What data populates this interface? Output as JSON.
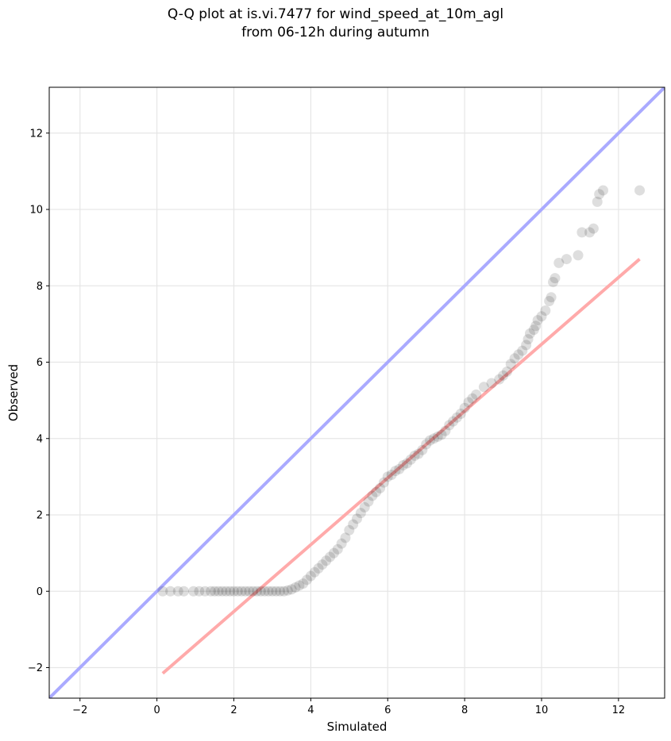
{
  "title": {
    "line1": "Q-Q plot at is.vi.7477 for wind_speed_at_10m_agl",
    "line2": "from 06-12h during autumn"
  },
  "chart_data": {
    "type": "scatter",
    "xlabel": "Simulated",
    "ylabel": "Observed",
    "xlim": [
      -2.8,
      13.2
    ],
    "ylim": [
      -2.8,
      13.2
    ],
    "xticks": [
      -2,
      0,
      2,
      4,
      6,
      8,
      10,
      12
    ],
    "yticks": [
      -2,
      0,
      2,
      4,
      6,
      8,
      10,
      12
    ],
    "x_tick_labels": [
      "−2",
      "0",
      "2",
      "4",
      "6",
      "8",
      "10",
      "12"
    ],
    "y_tick_labels": [
      "−2",
      "0",
      "2",
      "4",
      "6",
      "8",
      "10",
      "12"
    ],
    "grid": true,
    "marker_color": "#000000",
    "reference_lines": [
      {
        "name": "1:1",
        "color": "#aaaaff",
        "x": [
          -2.8,
          13.2
        ],
        "y": [
          -2.8,
          13.2
        ]
      },
      {
        "name": "fit",
        "color": "#ffaaaa",
        "x": [
          0.15,
          12.55
        ],
        "y": [
          -2.15,
          8.7
        ]
      }
    ],
    "points": [
      [
        0.15,
        0.0
      ],
      [
        0.35,
        0.0
      ],
      [
        0.55,
        0.0
      ],
      [
        0.7,
        0.0
      ],
      [
        0.95,
        0.0
      ],
      [
        1.1,
        0.0
      ],
      [
        1.25,
        0.0
      ],
      [
        1.4,
        0.0
      ],
      [
        1.5,
        0.0
      ],
      [
        1.6,
        0.0
      ],
      [
        1.7,
        0.0
      ],
      [
        1.8,
        0.0
      ],
      [
        1.9,
        0.0
      ],
      [
        2.0,
        0.0
      ],
      [
        2.1,
        0.0
      ],
      [
        2.2,
        0.0
      ],
      [
        2.3,
        0.0
      ],
      [
        2.4,
        0.0
      ],
      [
        2.5,
        0.0
      ],
      [
        2.6,
        0.0
      ],
      [
        2.7,
        0.0
      ],
      [
        2.8,
        0.0
      ],
      [
        2.9,
        0.0
      ],
      [
        3.0,
        0.0
      ],
      [
        3.1,
        0.0
      ],
      [
        3.2,
        0.0
      ],
      [
        3.3,
        0.0
      ],
      [
        3.4,
        0.02
      ],
      [
        3.5,
        0.05
      ],
      [
        3.6,
        0.1
      ],
      [
        3.7,
        0.15
      ],
      [
        3.8,
        0.2
      ],
      [
        3.9,
        0.3
      ],
      [
        4.0,
        0.4
      ],
      [
        4.1,
        0.5
      ],
      [
        4.2,
        0.6
      ],
      [
        4.3,
        0.7
      ],
      [
        4.4,
        0.8
      ],
      [
        4.5,
        0.9
      ],
      [
        4.6,
        1.0
      ],
      [
        4.7,
        1.1
      ],
      [
        4.8,
        1.25
      ],
      [
        4.9,
        1.4
      ],
      [
        5.0,
        1.6
      ],
      [
        5.1,
        1.75
      ],
      [
        5.2,
        1.9
      ],
      [
        5.3,
        2.05
      ],
      [
        5.4,
        2.2
      ],
      [
        5.5,
        2.35
      ],
      [
        5.6,
        2.5
      ],
      [
        5.7,
        2.6
      ],
      [
        5.8,
        2.7
      ],
      [
        5.9,
        2.85
      ],
      [
        6.0,
        3.0
      ],
      [
        6.1,
        3.05
      ],
      [
        6.2,
        3.15
      ],
      [
        6.3,
        3.2
      ],
      [
        6.4,
        3.3
      ],
      [
        6.5,
        3.35
      ],
      [
        6.6,
        3.45
      ],
      [
        6.7,
        3.55
      ],
      [
        6.8,
        3.6
      ],
      [
        6.9,
        3.7
      ],
      [
        7.0,
        3.85
      ],
      [
        7.1,
        3.95
      ],
      [
        7.2,
        4.0
      ],
      [
        7.3,
        4.05
      ],
      [
        7.4,
        4.1
      ],
      [
        7.5,
        4.2
      ],
      [
        7.6,
        4.35
      ],
      [
        7.7,
        4.45
      ],
      [
        7.8,
        4.55
      ],
      [
        7.9,
        4.65
      ],
      [
        8.0,
        4.8
      ],
      [
        8.1,
        4.95
      ],
      [
        8.2,
        5.05
      ],
      [
        8.3,
        5.15
      ],
      [
        8.5,
        5.35
      ],
      [
        8.7,
        5.45
      ],
      [
        8.9,
        5.55
      ],
      [
        9.0,
        5.65
      ],
      [
        9.1,
        5.75
      ],
      [
        9.2,
        5.95
      ],
      [
        9.3,
        6.1
      ],
      [
        9.4,
        6.2
      ],
      [
        9.5,
        6.3
      ],
      [
        9.6,
        6.45
      ],
      [
        9.65,
        6.6
      ],
      [
        9.7,
        6.75
      ],
      [
        9.8,
        6.85
      ],
      [
        9.85,
        6.95
      ],
      [
        9.9,
        7.1
      ],
      [
        10.0,
        7.2
      ],
      [
        10.1,
        7.35
      ],
      [
        10.2,
        7.6
      ],
      [
        10.25,
        7.7
      ],
      [
        10.3,
        8.1
      ],
      [
        10.35,
        8.2
      ],
      [
        10.45,
        8.6
      ],
      [
        10.65,
        8.7
      ],
      [
        10.95,
        8.8
      ],
      [
        11.05,
        9.4
      ],
      [
        11.25,
        9.4
      ],
      [
        11.35,
        9.5
      ],
      [
        11.45,
        10.2
      ],
      [
        11.5,
        10.4
      ],
      [
        11.6,
        10.5
      ],
      [
        12.55,
        10.5
      ]
    ]
  }
}
